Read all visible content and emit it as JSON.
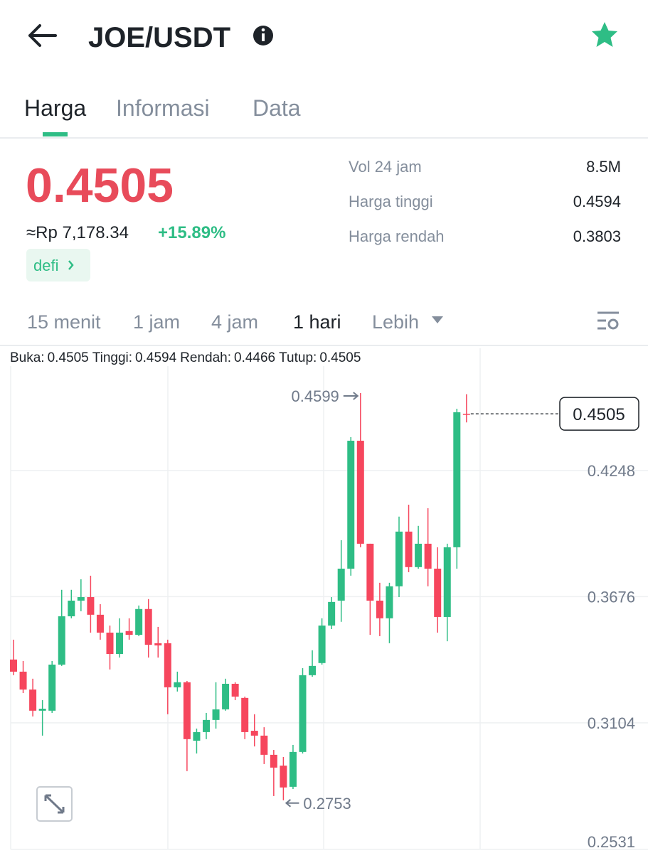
{
  "header": {
    "title": "JOE/USDT"
  },
  "tabs": [
    "Harga",
    "Informasi",
    "Data"
  ],
  "price": {
    "last": "0.4505",
    "fiat": "≈Rp 7,178.34",
    "change": "+15.89%",
    "tag": "defi"
  },
  "stats": [
    {
      "label": "Vol 24 jam",
      "value": "8.5M"
    },
    {
      "label": "Harga tinggi",
      "value": "0.4594"
    },
    {
      "label": "Harga rendah",
      "value": "0.3803"
    }
  ],
  "intervals": [
    "15 menit",
    "1 jam",
    "4 jam",
    "1 hari",
    "Lebih"
  ],
  "chart_data": {
    "type": "candlestick",
    "ohlc_legend": [
      {
        "label": "Buka:",
        "value": 0.4505
      },
      {
        "label": "Tinggi:",
        "value": 0.4594
      },
      {
        "label": "Rendah:",
        "value": 0.4466
      },
      {
        "label": "Tutup:",
        "value": 0.4505
      }
    ],
    "up_color": "#2ebd85",
    "down_color": "#f6465d",
    "open": [
      0.3391,
      0.3336,
      0.3255,
      0.3159,
      0.3159,
      0.3368,
      0.3587,
      0.3658,
      0.3674,
      0.3594,
      0.3513,
      0.3416,
      0.352,
      0.3503,
      0.362,
      0.3465,
      0.3465,
      0.3265,
      0.3288,
      0.3023,
      0.3062,
      0.3117,
      0.3165,
      0.3281,
      0.3217,
      0.3068,
      0.3046,
      0.2959,
      0.291,
      0.2814,
      0.2972,
      0.332,
      0.3375,
      0.3545,
      0.3658,
      0.3803,
      0.4383,
      0.3916,
      0.3658,
      0.3578,
      0.3723,
      0.3971,
      0.381,
      0.3916,
      0.3803,
      0.3584,
      0.39,
      0.4505
    ],
    "high": [
      0.3481,
      0.3384,
      0.3304,
      0.3207,
      0.3384,
      0.3707,
      0.3707,
      0.3755,
      0.3771,
      0.3642,
      0.3545,
      0.3578,
      0.3578,
      0.3636,
      0.3665,
      0.3539,
      0.3481,
      0.3336,
      0.3294,
      0.3078,
      0.3149,
      0.3288,
      0.3304,
      0.3288,
      0.3223,
      0.3143,
      0.3084,
      0.2981,
      0.2949,
      0.3004,
      0.3352,
      0.3433,
      0.3578,
      0.3674,
      0.3932,
      0.4399,
      0.4599,
      0.3916,
      0.3739,
      0.3739,
      0.4039,
      0.4093,
      0.3997,
      0.4077,
      0.39,
      0.3916,
      0.4528,
      0.4594
    ],
    "low": [
      0.332,
      0.3239,
      0.3133,
      0.3046,
      0.3149,
      0.3362,
      0.3578,
      0.361,
      0.3513,
      0.3481,
      0.3346,
      0.34,
      0.3481,
      0.3497,
      0.34,
      0.34,
      0.3143,
      0.3246,
      0.2885,
      0.2965,
      0.303,
      0.3078,
      0.3159,
      0.3207,
      0.303,
      0.2997,
      0.2917,
      0.2772,
      0.2753,
      0.2804,
      0.2965,
      0.3313,
      0.3368,
      0.3529,
      0.3562,
      0.3771,
      0.39,
      0.3503,
      0.3497,
      0.3465,
      0.3674,
      0.3787,
      0.3803,
      0.3723,
      0.3513,
      0.3474,
      0.3803,
      0.4466
    ],
    "close": [
      0.3336,
      0.3255,
      0.3159,
      0.3168,
      0.3368,
      0.3587,
      0.3658,
      0.3674,
      0.3594,
      0.3513,
      0.3416,
      0.3513,
      0.3503,
      0.362,
      0.3458,
      0.3455,
      0.3265,
      0.3288,
      0.303,
      0.3062,
      0.3117,
      0.3165,
      0.3281,
      0.3223,
      0.3062,
      0.3046,
      0.2959,
      0.2901,
      0.2811,
      0.2972,
      0.332,
      0.3362,
      0.3545,
      0.3652,
      0.3803,
      0.4383,
      0.3916,
      0.3658,
      0.3578,
      0.3723,
      0.3971,
      0.381,
      0.3916,
      0.3803,
      0.3584,
      0.39,
      0.4512,
      0.4505
    ],
    "ylim": [
      0.253,
      0.4802
    ],
    "yticks": [
      0.4248,
      0.3676,
      0.3104,
      0.2531
    ],
    "grid": true,
    "last_price": 0.4505,
    "high_annotation": 0.4599,
    "low_annotation": 0.2753
  }
}
